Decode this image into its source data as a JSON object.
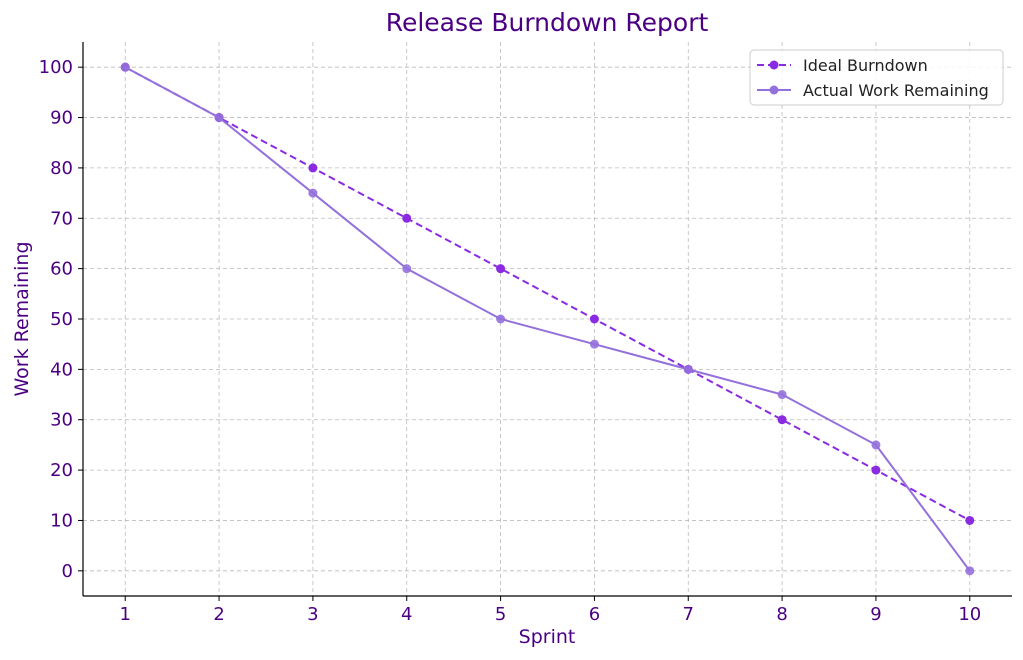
{
  "chart_data": {
    "type": "line",
    "title": "Release Burndown Report",
    "xlabel": "Sprint",
    "ylabel": "Work Remaining",
    "x": [
      1,
      2,
      3,
      4,
      5,
      6,
      7,
      8,
      9,
      10
    ],
    "xticks": [
      1,
      2,
      3,
      4,
      5,
      6,
      7,
      8,
      9,
      10
    ],
    "yticks": [
      0,
      10,
      20,
      30,
      40,
      50,
      60,
      70,
      80,
      90,
      100
    ],
    "xlim": [
      0.55,
      10.45
    ],
    "ylim": [
      -5,
      105
    ],
    "grid": true,
    "legend_position": "top-right",
    "series": [
      {
        "name": "Ideal Burndown",
        "values": [
          100,
          90,
          80,
          70,
          60,
          50,
          40,
          30,
          20,
          10
        ],
        "color": "#8a2be2",
        "linestyle": "dashed",
        "marker": "circle"
      },
      {
        "name": "Actual Work Remaining",
        "values": [
          100,
          90,
          75,
          60,
          50,
          45,
          40,
          35,
          25,
          0
        ],
        "color": "#9370db",
        "linestyle": "solid",
        "marker": "circle"
      }
    ],
    "text_color": "#4b0082"
  }
}
